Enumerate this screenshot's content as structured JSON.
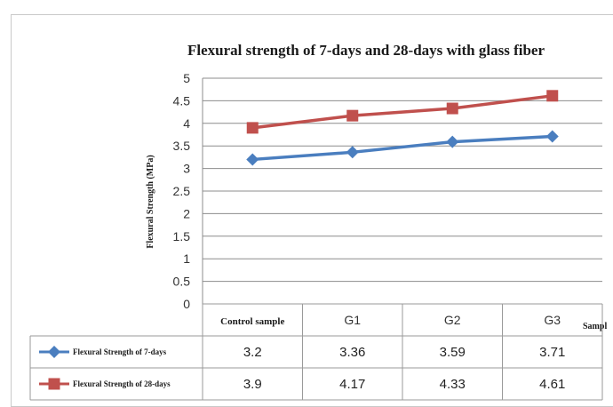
{
  "chart_data": {
    "type": "line",
    "title": "Flexural strength of 7-days and 28-days with glass fiber",
    "ylabel": "Flexural Strength (MPa)",
    "xlabel": "Sampl",
    "categories": [
      "Control sample",
      "G1",
      "G2",
      "G3"
    ],
    "ylim": [
      0,
      5
    ],
    "yticks": [
      "0",
      "0.5",
      "1",
      "1.5",
      "2",
      "2.5",
      "3",
      "3.5",
      "4",
      "4.5",
      "5"
    ],
    "grid": true,
    "legend_placement": "bottom data table",
    "series": [
      {
        "name": "Flexural Strength of 7-days",
        "values": [
          3.2,
          3.36,
          3.59,
          3.71
        ],
        "labels": [
          "3.2",
          "3.36",
          "3.59",
          "3.71"
        ],
        "color": "#4a7ebf",
        "marker": "diamond"
      },
      {
        "name": "Flexural Strength of 28-days",
        "values": [
          3.9,
          4.17,
          4.33,
          4.61
        ],
        "labels": [
          "3.9",
          "4.17",
          "4.33",
          "4.61"
        ],
        "color": "#c0504d",
        "marker": "square"
      }
    ]
  },
  "colors": {
    "grid": "#8c8c8c",
    "border": "#9a9a9a"
  }
}
